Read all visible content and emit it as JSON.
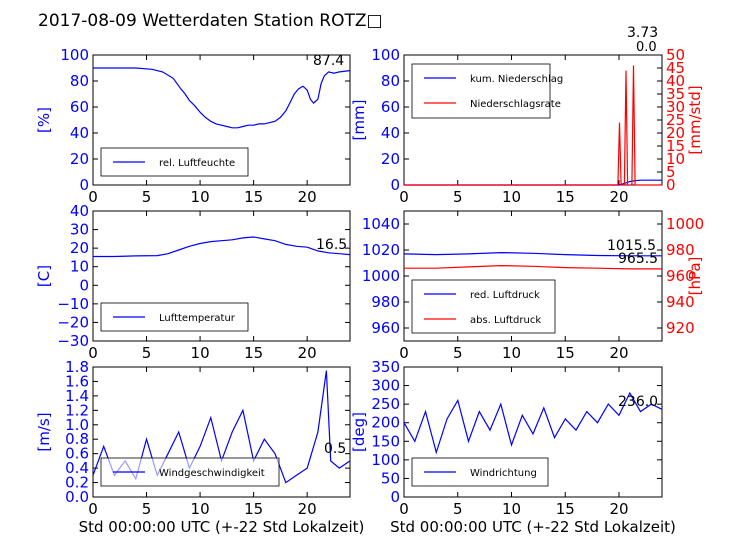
{
  "title": "2017-08-09 Wetterdaten Station ROTZ□",
  "colors": {
    "blue": "#0000ff",
    "red": "#ff0000",
    "black": "#000000"
  },
  "chart_data": [
    {
      "id": "humidity",
      "type": "line",
      "x_range": [
        0,
        24
      ],
      "x_ticks": [
        "0",
        "5",
        "10",
        "15",
        "20"
      ],
      "y_range": [
        0,
        100
      ],
      "y_ticks": [
        "0",
        "20",
        "40",
        "60",
        "80",
        "100"
      ],
      "ylabel": "[%]",
      "xlabel": "",
      "grid": false,
      "legend_position": "lower-left",
      "annotation": "87.4",
      "series": [
        {
          "name": "rel. Luftfeuchte",
          "color": "#0000ff",
          "points": [
            [
              0,
              90
            ],
            [
              2,
              90
            ],
            [
              4,
              90
            ],
            [
              5.5,
              89
            ],
            [
              6.5,
              87
            ],
            [
              7.5,
              82
            ],
            [
              8.2,
              74
            ],
            [
              8.6,
              70
            ],
            [
              9,
              65
            ],
            [
              9.5,
              61
            ],
            [
              10,
              56
            ],
            [
              10.5,
              52
            ],
            [
              11,
              49
            ],
            [
              11.5,
              47
            ],
            [
              12,
              46
            ],
            [
              12.5,
              45
            ],
            [
              13,
              44
            ],
            [
              13.5,
              44
            ],
            [
              14,
              45
            ],
            [
              14.5,
              46
            ],
            [
              15,
              46
            ],
            [
              15.5,
              47
            ],
            [
              16,
              47
            ],
            [
              16.5,
              48
            ],
            [
              17,
              49
            ],
            [
              17.5,
              52
            ],
            [
              18,
              57
            ],
            [
              18.5,
              65
            ],
            [
              18.8,
              70
            ],
            [
              19.2,
              74
            ],
            [
              19.6,
              76
            ],
            [
              20,
              73
            ],
            [
              20.3,
              66
            ],
            [
              20.6,
              63
            ],
            [
              21,
              66
            ],
            [
              21.3,
              78
            ],
            [
              21.6,
              84
            ],
            [
              22,
              87
            ],
            [
              22.5,
              86
            ],
            [
              23,
              87
            ],
            [
              24,
              88
            ]
          ]
        }
      ]
    },
    {
      "id": "precipitation",
      "type": "line",
      "x_range": [
        0,
        24
      ],
      "x_ticks": [
        "0",
        "5",
        "10",
        "15",
        "20"
      ],
      "y_range": [
        0,
        100
      ],
      "y_ticks": [
        "0",
        "20",
        "40",
        "60",
        "80",
        "100"
      ],
      "ylabel": "[mm]",
      "y2_range": [
        0,
        50
      ],
      "y2_ticks": [
        "0",
        "5",
        "10",
        "15",
        "20",
        "25",
        "30",
        "35",
        "40",
        "45",
        "50"
      ],
      "y2label": "[mm/std]",
      "xlabel": "",
      "grid": false,
      "legend_position": "upper-left",
      "annotations": [
        "3.73",
        "0.0"
      ],
      "series": [
        {
          "name": "kum. Niederschlag",
          "color": "#0000ff",
          "axis": "left",
          "points": [
            [
              0,
              0
            ],
            [
              20,
              0
            ],
            [
              20.5,
              1.2
            ],
            [
              21,
              2.6
            ],
            [
              21.5,
              3.4
            ],
            [
              22,
              3.73
            ],
            [
              24,
              3.73
            ]
          ]
        },
        {
          "name": "Niederschlagsrate",
          "color": "#ff0000",
          "axis": "right",
          "points": [
            [
              0,
              0
            ],
            [
              19.9,
              0
            ],
            [
              20.05,
              24
            ],
            [
              20.2,
              0
            ],
            [
              20.5,
              0
            ],
            [
              20.65,
              44
            ],
            [
              20.8,
              0
            ],
            [
              21.2,
              0
            ],
            [
              21.35,
              46
            ],
            [
              21.5,
              0
            ],
            [
              24,
              0
            ]
          ]
        }
      ]
    },
    {
      "id": "temperature",
      "type": "line",
      "x_range": [
        0,
        24
      ],
      "x_ticks": [
        "0",
        "5",
        "10",
        "15",
        "20"
      ],
      "y_range": [
        -30,
        40
      ],
      "y_ticks": [
        "−30",
        "−20",
        "−10",
        "0",
        "10",
        "20",
        "30",
        "40"
      ],
      "ylabel": "[C]",
      "xlabel": "",
      "grid": false,
      "legend_position": "lower-left",
      "annotation": "16.5",
      "series": [
        {
          "name": "Lufttemperatur",
          "color": "#0000ff",
          "points": [
            [
              0,
              15.5
            ],
            [
              2,
              15.5
            ],
            [
              4,
              15.8
            ],
            [
              6,
              16
            ],
            [
              7,
              17
            ],
            [
              8,
              19
            ],
            [
              9,
              21
            ],
            [
              10,
              22.5
            ],
            [
              11,
              23.5
            ],
            [
              12,
              24
            ],
            [
              13,
              24.5
            ],
            [
              14,
              25.5
            ],
            [
              15,
              26
            ],
            [
              16,
              25
            ],
            [
              17,
              24
            ],
            [
              18,
              22
            ],
            [
              19,
              21
            ],
            [
              20,
              20.5
            ],
            [
              21,
              18.5
            ],
            [
              22,
              17.5
            ],
            [
              23,
              17
            ],
            [
              24,
              16.5
            ]
          ]
        }
      ]
    },
    {
      "id": "pressure",
      "type": "line",
      "x_range": [
        0,
        24
      ],
      "x_ticks": [
        "0",
        "5",
        "10",
        "15",
        "20"
      ],
      "y_range": [
        950,
        1050
      ],
      "y_ticks": [
        "960",
        "980",
        "1000",
        "1020",
        "1040"
      ],
      "ylabel": "",
      "y2_range": [
        910,
        1010
      ],
      "y2_ticks": [
        "920",
        "940",
        "960",
        "980",
        "1000"
      ],
      "y2label": "[hPa]",
      "xlabel": "",
      "grid": false,
      "legend_position": "lower-left",
      "annotations": [
        "1015.5",
        "965.5"
      ],
      "series": [
        {
          "name": "red. Luftdruck",
          "color": "#0000ff",
          "axis": "left",
          "points": [
            [
              0,
              1017
            ],
            [
              3,
              1016.5
            ],
            [
              6,
              1017
            ],
            [
              9,
              1018
            ],
            [
              12,
              1017.5
            ],
            [
              15,
              1016.5
            ],
            [
              18,
              1015.8
            ],
            [
              21,
              1015.5
            ],
            [
              24,
              1015.5
            ]
          ]
        },
        {
          "name": "abs. Luftdruck",
          "color": "#ff0000",
          "axis": "right",
          "points": [
            [
              0,
              966
            ],
            [
              3,
              966
            ],
            [
              6,
              967
            ],
            [
              9,
              968
            ],
            [
              12,
              967.5
            ],
            [
              15,
              966.5
            ],
            [
              18,
              966
            ],
            [
              21,
              965.5
            ],
            [
              24,
              965.5
            ]
          ]
        }
      ]
    },
    {
      "id": "wind-speed",
      "type": "line",
      "x_range": [
        0,
        24
      ],
      "x_ticks": [
        "0",
        "5",
        "10",
        "15",
        "20"
      ],
      "y_range": [
        0,
        1.8
      ],
      "y_ticks": [
        "0.0",
        "0.2",
        "0.4",
        "0.6",
        "0.8",
        "1.0",
        "1.2",
        "1.4",
        "1.6",
        "1.8"
      ],
      "ylabel": "[m/s]",
      "xlabel": "Std 00:00:00 UTC (+-22 Std Lokalzeit)",
      "grid": false,
      "legend_position": "lower-left",
      "annotation": "0.5",
      "series": [
        {
          "name": "Windgeschwindigkeit",
          "color": "#0000ff",
          "points": [
            [
              0,
              0.3
            ],
            [
              1,
              0.7
            ],
            [
              2,
              0.3
            ],
            [
              3,
              0.5
            ],
            [
              4,
              0.25
            ],
            [
              5,
              0.8
            ],
            [
              6,
              0.3
            ],
            [
              7,
              0.6
            ],
            [
              8,
              0.9
            ],
            [
              9,
              0.4
            ],
            [
              10,
              0.7
            ],
            [
              11,
              1.1
            ],
            [
              12,
              0.5
            ],
            [
              13,
              0.9
            ],
            [
              14,
              1.2
            ],
            [
              15,
              0.5
            ],
            [
              16,
              0.8
            ],
            [
              17,
              0.6
            ],
            [
              18,
              0.2
            ],
            [
              19,
              0.3
            ],
            [
              20,
              0.4
            ],
            [
              21,
              0.9
            ],
            [
              21.8,
              1.75
            ],
            [
              22.2,
              0.5
            ],
            [
              23,
              0.4
            ],
            [
              24,
              0.5
            ]
          ]
        }
      ]
    },
    {
      "id": "wind-direction",
      "type": "line",
      "x_range": [
        0,
        24
      ],
      "x_ticks": [
        "0",
        "5",
        "10",
        "15",
        "20"
      ],
      "y_range": [
        0,
        350
      ],
      "y_ticks": [
        "0",
        "50",
        "100",
        "150",
        "200",
        "250",
        "300",
        "350"
      ],
      "ylabel": "[deg]",
      "xlabel": "Std 00:00:00 UTC (+-22 Std Lokalzeit)",
      "grid": false,
      "legend_position": "lower-left",
      "annotation": "236.0",
      "series": [
        {
          "name": "Windrichtung",
          "color": "#0000ff",
          "points": [
            [
              0,
              200
            ],
            [
              1,
              150
            ],
            [
              2,
              230
            ],
            [
              3,
              120
            ],
            [
              4,
              210
            ],
            [
              5,
              260
            ],
            [
              6,
              150
            ],
            [
              7,
              230
            ],
            [
              8,
              180
            ],
            [
              9,
              250
            ],
            [
              10,
              140
            ],
            [
              11,
              220
            ],
            [
              12,
              170
            ],
            [
              13,
              240
            ],
            [
              14,
              160
            ],
            [
              15,
              210
            ],
            [
              16,
              180
            ],
            [
              17,
              230
            ],
            [
              18,
              200
            ],
            [
              19,
              250
            ],
            [
              20,
              220
            ],
            [
              21,
              280
            ],
            [
              22,
              230
            ],
            [
              23,
              250
            ],
            [
              24,
              236
            ]
          ]
        }
      ]
    }
  ]
}
